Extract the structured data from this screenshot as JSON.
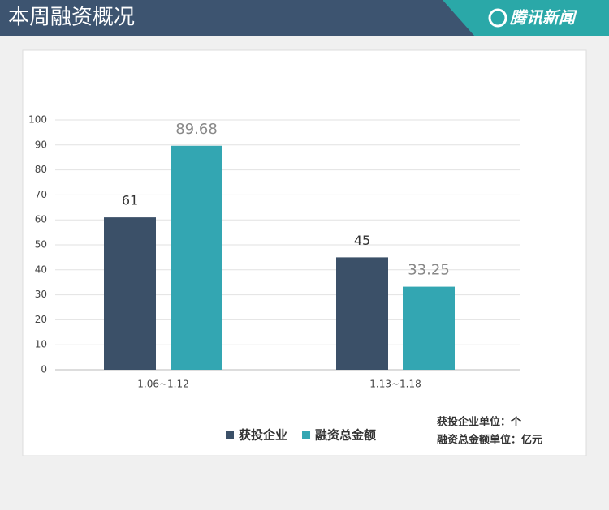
{
  "header": {
    "title": "本周融资概况",
    "logo": "腾讯新闻"
  },
  "chart_data": {
    "type": "bar",
    "categories": [
      "1.06~1.12",
      "1.13~1.18"
    ],
    "series": [
      {
        "name": "获投企业",
        "color": "#3b5068",
        "values": [
          61,
          45
        ]
      },
      {
        "name": "融资总金额",
        "color": "#33a6b2",
        "values": [
          89.68,
          33.25
        ]
      }
    ],
    "ylim": [
      0,
      100
    ],
    "yticks": [
      0,
      10,
      20,
      30,
      40,
      50,
      60,
      70,
      80,
      90,
      100
    ],
    "grid": true,
    "legend": "bottom",
    "annotations": [
      "获投企业单位：个",
      "融资总金额单位：亿元"
    ]
  }
}
